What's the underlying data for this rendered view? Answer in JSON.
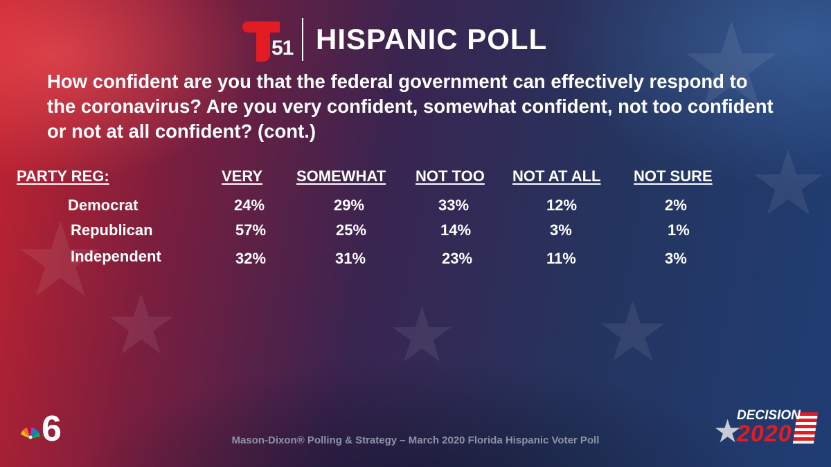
{
  "header": {
    "logo_text": "51",
    "title": "HISPANIC POLL"
  },
  "question": "How confident are you that the federal government can effectively respond to the coronavirus?  Are you very confident, somewhat confident, not too confident or not at all confident?  (cont.)",
  "table": {
    "row_header": "PARTY REG:",
    "columns": [
      "VERY",
      "SOMEWHAT",
      "NOT TOO",
      "NOT AT ALL",
      "NOT SURE"
    ],
    "rows": [
      {
        "label": "Democrat",
        "values": [
          "24%",
          "29%",
          "33%",
          "12%",
          "2%"
        ]
      },
      {
        "label": "Republican",
        "values": [
          "57%",
          "25%",
          "14%",
          "3%",
          "1%"
        ]
      },
      {
        "label": "Independent",
        "values": [
          "32%",
          "31%",
          "23%",
          "11%",
          "3%"
        ]
      }
    ]
  },
  "footer": {
    "source": "Mason-Dixon® Polling & Strategy – March 2020 Florida Hispanic Voter Poll",
    "nbc_logo_text": "6",
    "decision_word": "DECISION",
    "decision_year": "2020"
  },
  "colors": {
    "brand_red": "#e31b23",
    "text": "#ffffff",
    "footer_text": "#8d93a8"
  }
}
